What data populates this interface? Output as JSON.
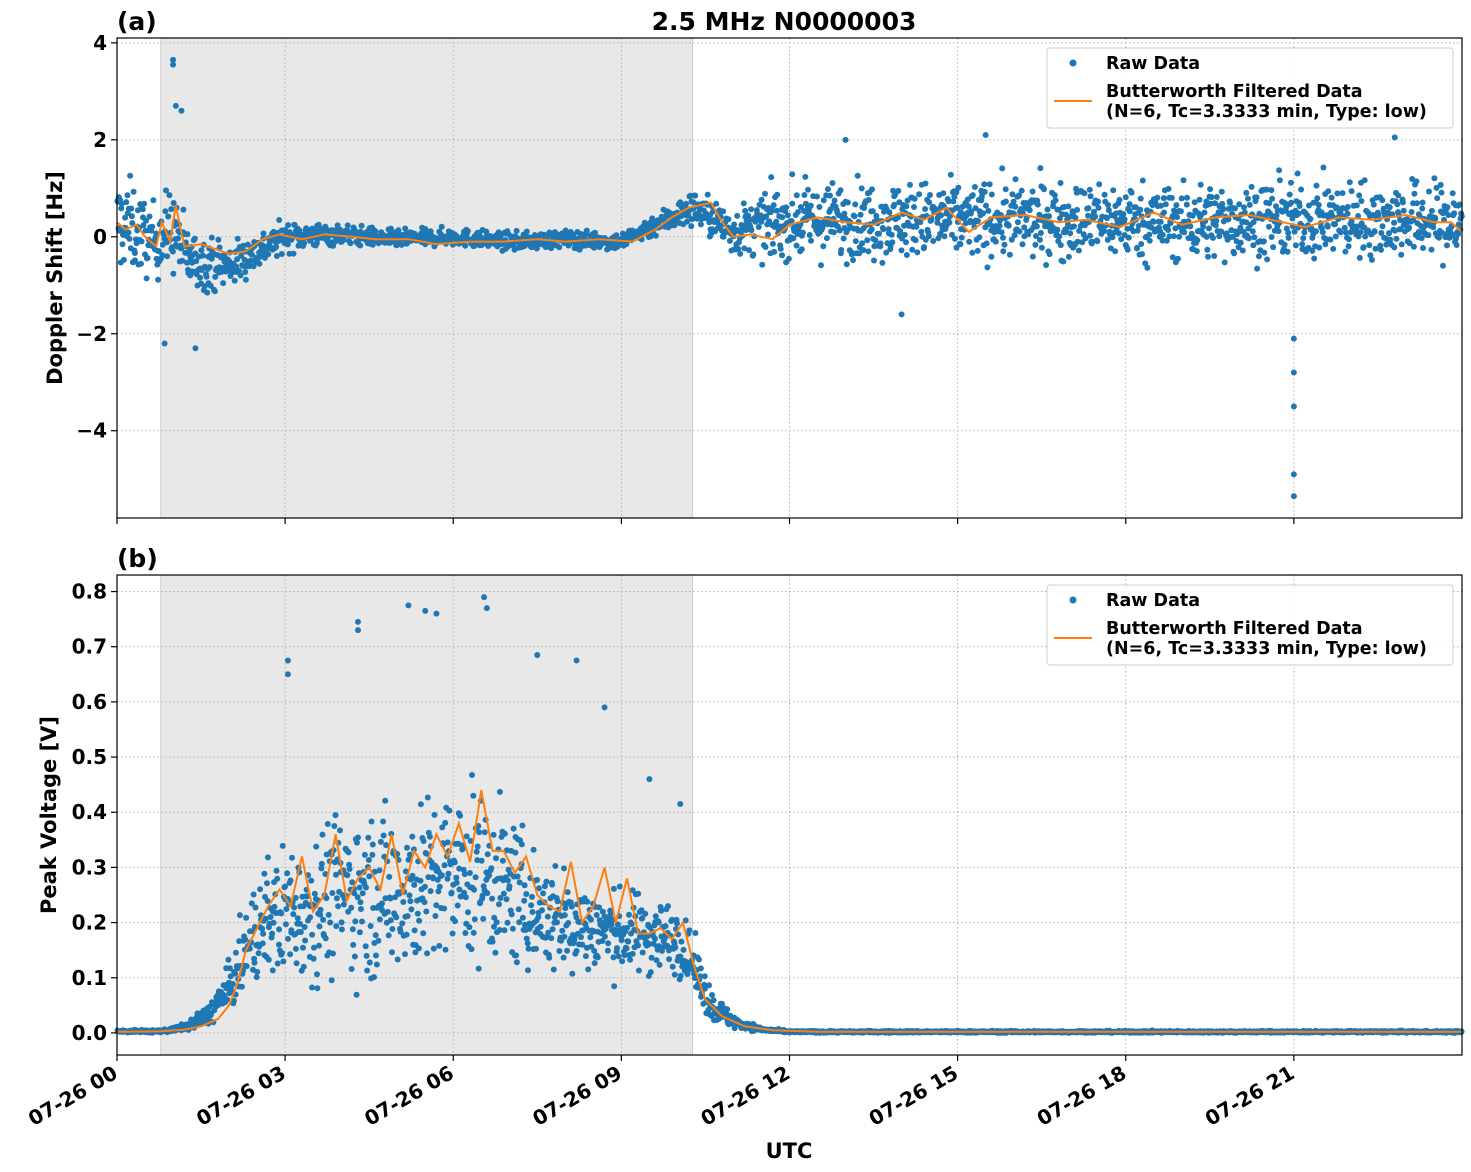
{
  "chart_data": [
    {
      "type": "scatter",
      "panel_label": "(a)",
      "title": "2.5 MHz N0000003",
      "xlabel": "",
      "ylabel": "Doppler Shift [Hz]",
      "xlim_hours": [
        0,
        24
      ],
      "ylim": [
        -5.8,
        4.1
      ],
      "y_ticks": [
        4,
        2,
        0,
        -2,
        -4
      ],
      "y_tick_labels": [
        "4",
        "2",
        "0",
        "−2",
        "−4"
      ],
      "grid": true,
      "legend_position": "top-right",
      "shaded_region_hours": [
        0.78,
        10.27
      ],
      "series": [
        {
          "name": "Raw Data",
          "style": "points",
          "color": "#1f77b4",
          "x_hours": [
            0.2,
            0.6,
            1.0,
            1.3,
            2.0,
            3.0,
            4.0,
            5.0,
            6.0,
            7.0,
            8.0,
            9.0,
            9.7,
            10.3,
            11.0,
            11.8,
            13.0,
            15.0,
            17.0,
            19.0,
            21.0,
            23.0,
            23.9
          ],
          "values": [
            0.25,
            -0.1,
            0.15,
            -0.5,
            -0.6,
            0.0,
            0.05,
            -0.05,
            0.0,
            -0.1,
            -0.05,
            -0.1,
            0.3,
            0.6,
            0.1,
            0.3,
            0.35,
            0.35,
            0.35,
            0.3,
            0.35,
            0.35,
            0.3
          ],
          "spread": [
            1.6,
            1.2,
            1.5,
            1.0,
            0.8,
            0.5,
            0.35,
            0.3,
            0.3,
            0.3,
            0.3,
            0.3,
            0.4,
            0.6,
            0.8,
            1.2,
            1.3,
            1.3,
            1.3,
            1.3,
            1.3,
            1.3,
            1.4
          ],
          "outliers": [
            {
              "x_hours": 1.0,
              "y": 3.65
            },
            {
              "x_hours": 1.0,
              "y": 3.55
            },
            {
              "x_hours": 1.05,
              "y": 2.7
            },
            {
              "x_hours": 1.15,
              "y": 2.6
            },
            {
              "x_hours": 0.85,
              "y": -2.2
            },
            {
              "x_hours": 1.4,
              "y": -2.3
            },
            {
              "x_hours": 13.0,
              "y": 2.0
            },
            {
              "x_hours": 15.5,
              "y": 2.1
            },
            {
              "x_hours": 14.0,
              "y": -1.6
            },
            {
              "x_hours": 21.0,
              "y": -2.1
            },
            {
              "x_hours": 21.0,
              "y": -2.8
            },
            {
              "x_hours": 21.0,
              "y": -3.5
            },
            {
              "x_hours": 21.0,
              "y": -4.9
            },
            {
              "x_hours": 21.0,
              "y": -5.35
            },
            {
              "x_hours": 22.8,
              "y": 2.05
            }
          ]
        },
        {
          "name": "Butterworth Filtered Data",
          "legend_line2": "(N=6, Tc=3.3333 min, Type: low)",
          "style": "line",
          "color": "#ff7f0e",
          "x_hours": [
            0.0,
            0.15,
            0.35,
            0.5,
            0.7,
            0.8,
            0.95,
            1.05,
            1.2,
            1.5,
            2.0,
            2.3,
            2.6,
            2.9,
            3.3,
            3.7,
            4.2,
            4.6,
            5.2,
            5.7,
            6.3,
            6.9,
            7.5,
            8.0,
            8.6,
            9.2,
            9.6,
            9.9,
            10.2,
            10.6,
            10.8,
            11.0,
            11.3,
            11.7,
            12.0,
            12.5,
            13.0,
            13.5,
            14.0,
            14.4,
            14.8,
            15.2,
            15.6,
            16.2,
            16.8,
            17.3,
            17.9,
            18.5,
            19.0,
            19.6,
            20.2,
            20.8,
            21.2,
            21.8,
            22.4,
            23.0,
            23.5,
            23.8,
            24.0
          ],
          "values": [
            0.3,
            0.15,
            0.25,
            0.0,
            -0.2,
            0.3,
            -0.1,
            0.65,
            -0.2,
            -0.15,
            -0.35,
            -0.3,
            -0.05,
            0.05,
            -0.05,
            0.05,
            0.0,
            -0.05,
            -0.05,
            -0.15,
            -0.1,
            -0.1,
            -0.05,
            -0.1,
            -0.05,
            -0.1,
            0.15,
            0.4,
            0.6,
            0.7,
            0.3,
            0.0,
            0.05,
            -0.05,
            0.25,
            0.4,
            0.3,
            0.25,
            0.5,
            0.35,
            0.6,
            0.1,
            0.4,
            0.45,
            0.3,
            0.35,
            0.2,
            0.5,
            0.25,
            0.4,
            0.45,
            0.3,
            0.2,
            0.4,
            0.35,
            0.45,
            0.3,
            0.3,
            0.1
          ]
        }
      ]
    },
    {
      "type": "scatter",
      "panel_label": "(b)",
      "title": "",
      "xlabel": "UTC",
      "ylabel": "Peak Voltage [V]",
      "xlim_hours": [
        0,
        24
      ],
      "ylim": [
        -0.04,
        0.83
      ],
      "y_ticks": [
        0.8,
        0.7,
        0.6,
        0.5,
        0.4,
        0.3,
        0.2,
        0.1,
        0.0
      ],
      "y_tick_labels": [
        "0.8",
        "0.7",
        "0.6",
        "0.5",
        "0.4",
        "0.3",
        "0.2",
        "0.1",
        "0.0"
      ],
      "x_ticks_hours": [
        0,
        3,
        6,
        9,
        12,
        15,
        18,
        21
      ],
      "x_tick_labels": [
        "07-26 00",
        "07-26 03",
        "07-26 06",
        "07-26 09",
        "07-26 12",
        "07-26 15",
        "07-26 18",
        "07-26 21"
      ],
      "grid": true,
      "legend_position": "top-right",
      "shaded_region_hours": [
        0.78,
        10.27
      ],
      "series": [
        {
          "name": "Raw Data",
          "style": "points",
          "color": "#1f77b4",
          "x_hours": [
            0.0,
            0.8,
            1.2,
            1.6,
            2.0,
            2.3,
            2.6,
            3.0,
            3.5,
            4.0,
            4.5,
            5.0,
            5.5,
            6.0,
            6.5,
            7.0,
            7.5,
            8.0,
            8.5,
            9.0,
            9.5,
            10.0,
            10.3,
            10.6,
            11.0,
            11.5,
            12.0,
            24.0
          ],
          "values": [
            0.003,
            0.003,
            0.01,
            0.03,
            0.08,
            0.15,
            0.2,
            0.22,
            0.23,
            0.26,
            0.25,
            0.26,
            0.27,
            0.28,
            0.29,
            0.26,
            0.22,
            0.2,
            0.19,
            0.18,
            0.18,
            0.17,
            0.12,
            0.05,
            0.02,
            0.006,
            0.002,
            0.002
          ],
          "spread": [
            0.004,
            0.004,
            0.01,
            0.03,
            0.07,
            0.12,
            0.17,
            0.2,
            0.22,
            0.24,
            0.24,
            0.26,
            0.25,
            0.26,
            0.26,
            0.22,
            0.18,
            0.16,
            0.13,
            0.12,
            0.12,
            0.1,
            0.08,
            0.05,
            0.02,
            0.006,
            0.003,
            0.003
          ],
          "outliers": [
            {
              "x_hours": 3.05,
              "y": 0.675
            },
            {
              "x_hours": 3.05,
              "y": 0.65
            },
            {
              "x_hours": 4.3,
              "y": 0.745
            },
            {
              "x_hours": 4.3,
              "y": 0.73
            },
            {
              "x_hours": 5.2,
              "y": 0.775
            },
            {
              "x_hours": 5.5,
              "y": 0.765
            },
            {
              "x_hours": 5.7,
              "y": 0.76
            },
            {
              "x_hours": 6.55,
              "y": 0.79
            },
            {
              "x_hours": 6.6,
              "y": 0.77
            },
            {
              "x_hours": 7.5,
              "y": 0.685
            },
            {
              "x_hours": 8.2,
              "y": 0.675
            },
            {
              "x_hours": 8.7,
              "y": 0.59
            },
            {
              "x_hours": 9.5,
              "y": 0.46
            },
            {
              "x_hours": 10.05,
              "y": 0.415
            }
          ]
        },
        {
          "name": "Butterworth Filtered Data",
          "legend_line2": "(N=6, Tc=3.3333 min, Type: low)",
          "style": "line",
          "color": "#ff7f0e",
          "x_hours": [
            0.0,
            0.8,
            1.2,
            1.5,
            1.8,
            2.0,
            2.15,
            2.3,
            2.5,
            2.7,
            2.9,
            3.1,
            3.3,
            3.5,
            3.7,
            3.9,
            4.1,
            4.3,
            4.5,
            4.7,
            4.9,
            5.1,
            5.3,
            5.5,
            5.7,
            5.9,
            6.1,
            6.3,
            6.5,
            6.7,
            6.9,
            7.1,
            7.3,
            7.5,
            7.7,
            7.9,
            8.1,
            8.3,
            8.5,
            8.7,
            8.9,
            9.1,
            9.3,
            9.5,
            9.7,
            9.9,
            10.1,
            10.3,
            10.5,
            10.8,
            11.2,
            11.7,
            12.5,
            24.0
          ],
          "values": [
            0.002,
            0.003,
            0.006,
            0.012,
            0.025,
            0.05,
            0.09,
            0.15,
            0.19,
            0.23,
            0.26,
            0.23,
            0.32,
            0.22,
            0.25,
            0.36,
            0.24,
            0.28,
            0.3,
            0.26,
            0.36,
            0.25,
            0.33,
            0.3,
            0.36,
            0.32,
            0.38,
            0.31,
            0.44,
            0.33,
            0.33,
            0.29,
            0.32,
            0.25,
            0.23,
            0.22,
            0.31,
            0.2,
            0.23,
            0.3,
            0.2,
            0.28,
            0.18,
            0.18,
            0.19,
            0.17,
            0.2,
            0.12,
            0.06,
            0.03,
            0.012,
            0.005,
            0.002,
            0.002
          ]
        }
      ]
    }
  ],
  "colors": {
    "raw": "#1f77b4",
    "filtered": "#ff7f0e",
    "shade": "#e8e8e8",
    "grid": "#b0b0b0"
  }
}
